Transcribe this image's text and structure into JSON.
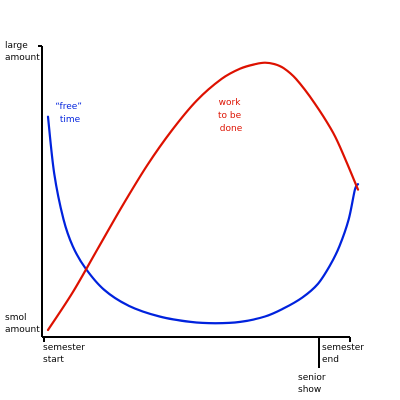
{
  "chart_data": {
    "type": "line",
    "title": "",
    "xlabel": "",
    "ylabel": "",
    "xlim": [
      0,
      1
    ],
    "ylim": [
      0,
      1
    ],
    "grid": false,
    "legend": "none",
    "y_ticks": [
      {
        "value": 1,
        "label_lines": [
          "large",
          "amount"
        ]
      },
      {
        "value": 0,
        "label_lines": [
          "smol",
          "amount"
        ]
      }
    ],
    "x_ticks": [
      {
        "value": 0,
        "label_lines": [
          "semester",
          "start"
        ]
      },
      {
        "value": 0.883,
        "label_lines": [
          "senior",
          "show"
        ]
      },
      {
        "value": 1,
        "label_lines": [
          "semester",
          "end"
        ]
      }
    ],
    "series": [
      {
        "name": "“free” time",
        "label_lines": [
          "“free”",
          "time"
        ],
        "color": "#0022dd",
        "x": [
          0.0,
          0.02,
          0.05,
          0.08,
          0.12,
          0.18,
          0.26,
          0.36,
          0.46,
          0.54,
          0.62,
          0.7,
          0.76,
          0.82,
          0.87,
          0.91,
          0.94,
          0.97,
          0.99,
          1.0
        ],
        "values": [
          0.79,
          0.58,
          0.41,
          0.31,
          0.23,
          0.15,
          0.09,
          0.05,
          0.03,
          0.025,
          0.03,
          0.05,
          0.08,
          0.12,
          0.17,
          0.24,
          0.31,
          0.41,
          0.52,
          0.54
        ]
      },
      {
        "name": "work to be done",
        "label_lines": [
          "work",
          "to be",
          "done"
        ],
        "color": "#dd1100",
        "x": [
          0.0,
          0.08,
          0.16,
          0.24,
          0.32,
          0.4,
          0.48,
          0.56,
          0.62,
          0.67,
          0.7,
          0.73,
          0.76,
          0.8,
          0.86,
          0.92,
          0.96,
          1.0
        ],
        "values": [
          0.0,
          0.14,
          0.3,
          0.46,
          0.61,
          0.74,
          0.85,
          0.93,
          0.968,
          0.985,
          0.99,
          0.985,
          0.97,
          0.93,
          0.84,
          0.73,
          0.63,
          0.52
        ]
      }
    ]
  }
}
